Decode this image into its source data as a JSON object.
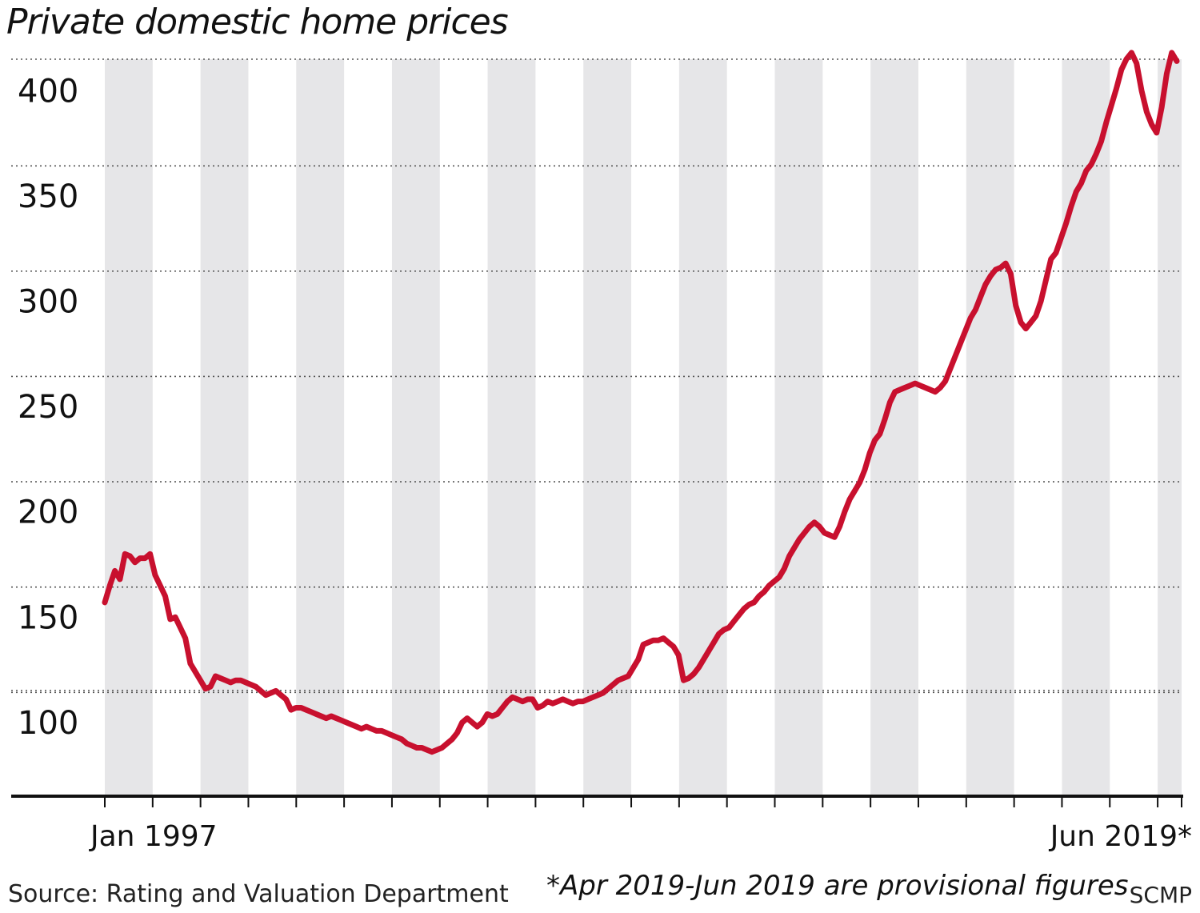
{
  "chart_data": {
    "type": "line",
    "title": "Private domestic home prices",
    "xlabel": "",
    "ylabel": "",
    "x_start": "Jan 1997",
    "x_end": "Jun 2019",
    "x_tick_labels": [
      "Jan 1997",
      "Jun 2019*"
    ],
    "y_ticks": [
      100,
      150,
      200,
      250,
      300,
      350,
      400
    ],
    "ylim": [
      65,
      415
    ],
    "grid": "horizontal dotted",
    "background": "alternating grey year bands",
    "series": [
      {
        "color": "#c8102e",
        "values": [
          157,
          165,
          172,
          168,
          180,
          179,
          176,
          178,
          178,
          180,
          170,
          165,
          160,
          149,
          150,
          145,
          140,
          128,
          124,
          120,
          116,
          117,
          122,
          121,
          120,
          119,
          120,
          120,
          119,
          118,
          117,
          115,
          113,
          114,
          115,
          113,
          111,
          106,
          107,
          107,
          106,
          105,
          104,
          103,
          102,
          103,
          102,
          101,
          100,
          99,
          98,
          97,
          98,
          97,
          96,
          96,
          95,
          94,
          93,
          92,
          90,
          89,
          88,
          88,
          87,
          86,
          87,
          88,
          90,
          92,
          95,
          100,
          102,
          100,
          98,
          100,
          104,
          103,
          104,
          107,
          110,
          112,
          111,
          110,
          111,
          111,
          107,
          108,
          110,
          109,
          110,
          111,
          110,
          109,
          110,
          110,
          111,
          112,
          113,
          114,
          116,
          118,
          120,
          121,
          122,
          126,
          130,
          137,
          138,
          139,
          139,
          140,
          138,
          136,
          132,
          120,
          121,
          123,
          126,
          130,
          134,
          138,
          142,
          144,
          145,
          148,
          151,
          154,
          156,
          157,
          160,
          162,
          165,
          167,
          169,
          173,
          179,
          183,
          187,
          190,
          193,
          195,
          193,
          190,
          189,
          188,
          193,
          200,
          206,
          210,
          214,
          220,
          228,
          234,
          237,
          244,
          252,
          257,
          258,
          259,
          260,
          261,
          260,
          259,
          258,
          257,
          259,
          262,
          268,
          274,
          280,
          286,
          292,
          296,
          302,
          308,
          312,
          315,
          316,
          318,
          313,
          298,
          290,
          287,
          290,
          293,
          300,
          310,
          320,
          323,
          330,
          337,
          345,
          352,
          356,
          362,
          365,
          370,
          376,
          385,
          393,
          401,
          410,
          415,
          418,
          413,
          400,
          390,
          384,
          380,
          392,
          408,
          418,
          414
        ]
      }
    ]
  },
  "footer": {
    "source": "Source: Rating and Valuation Department",
    "footnote": "*Apr 2019-Jun 2019 are provisional figures",
    "credit": "SCMP"
  }
}
